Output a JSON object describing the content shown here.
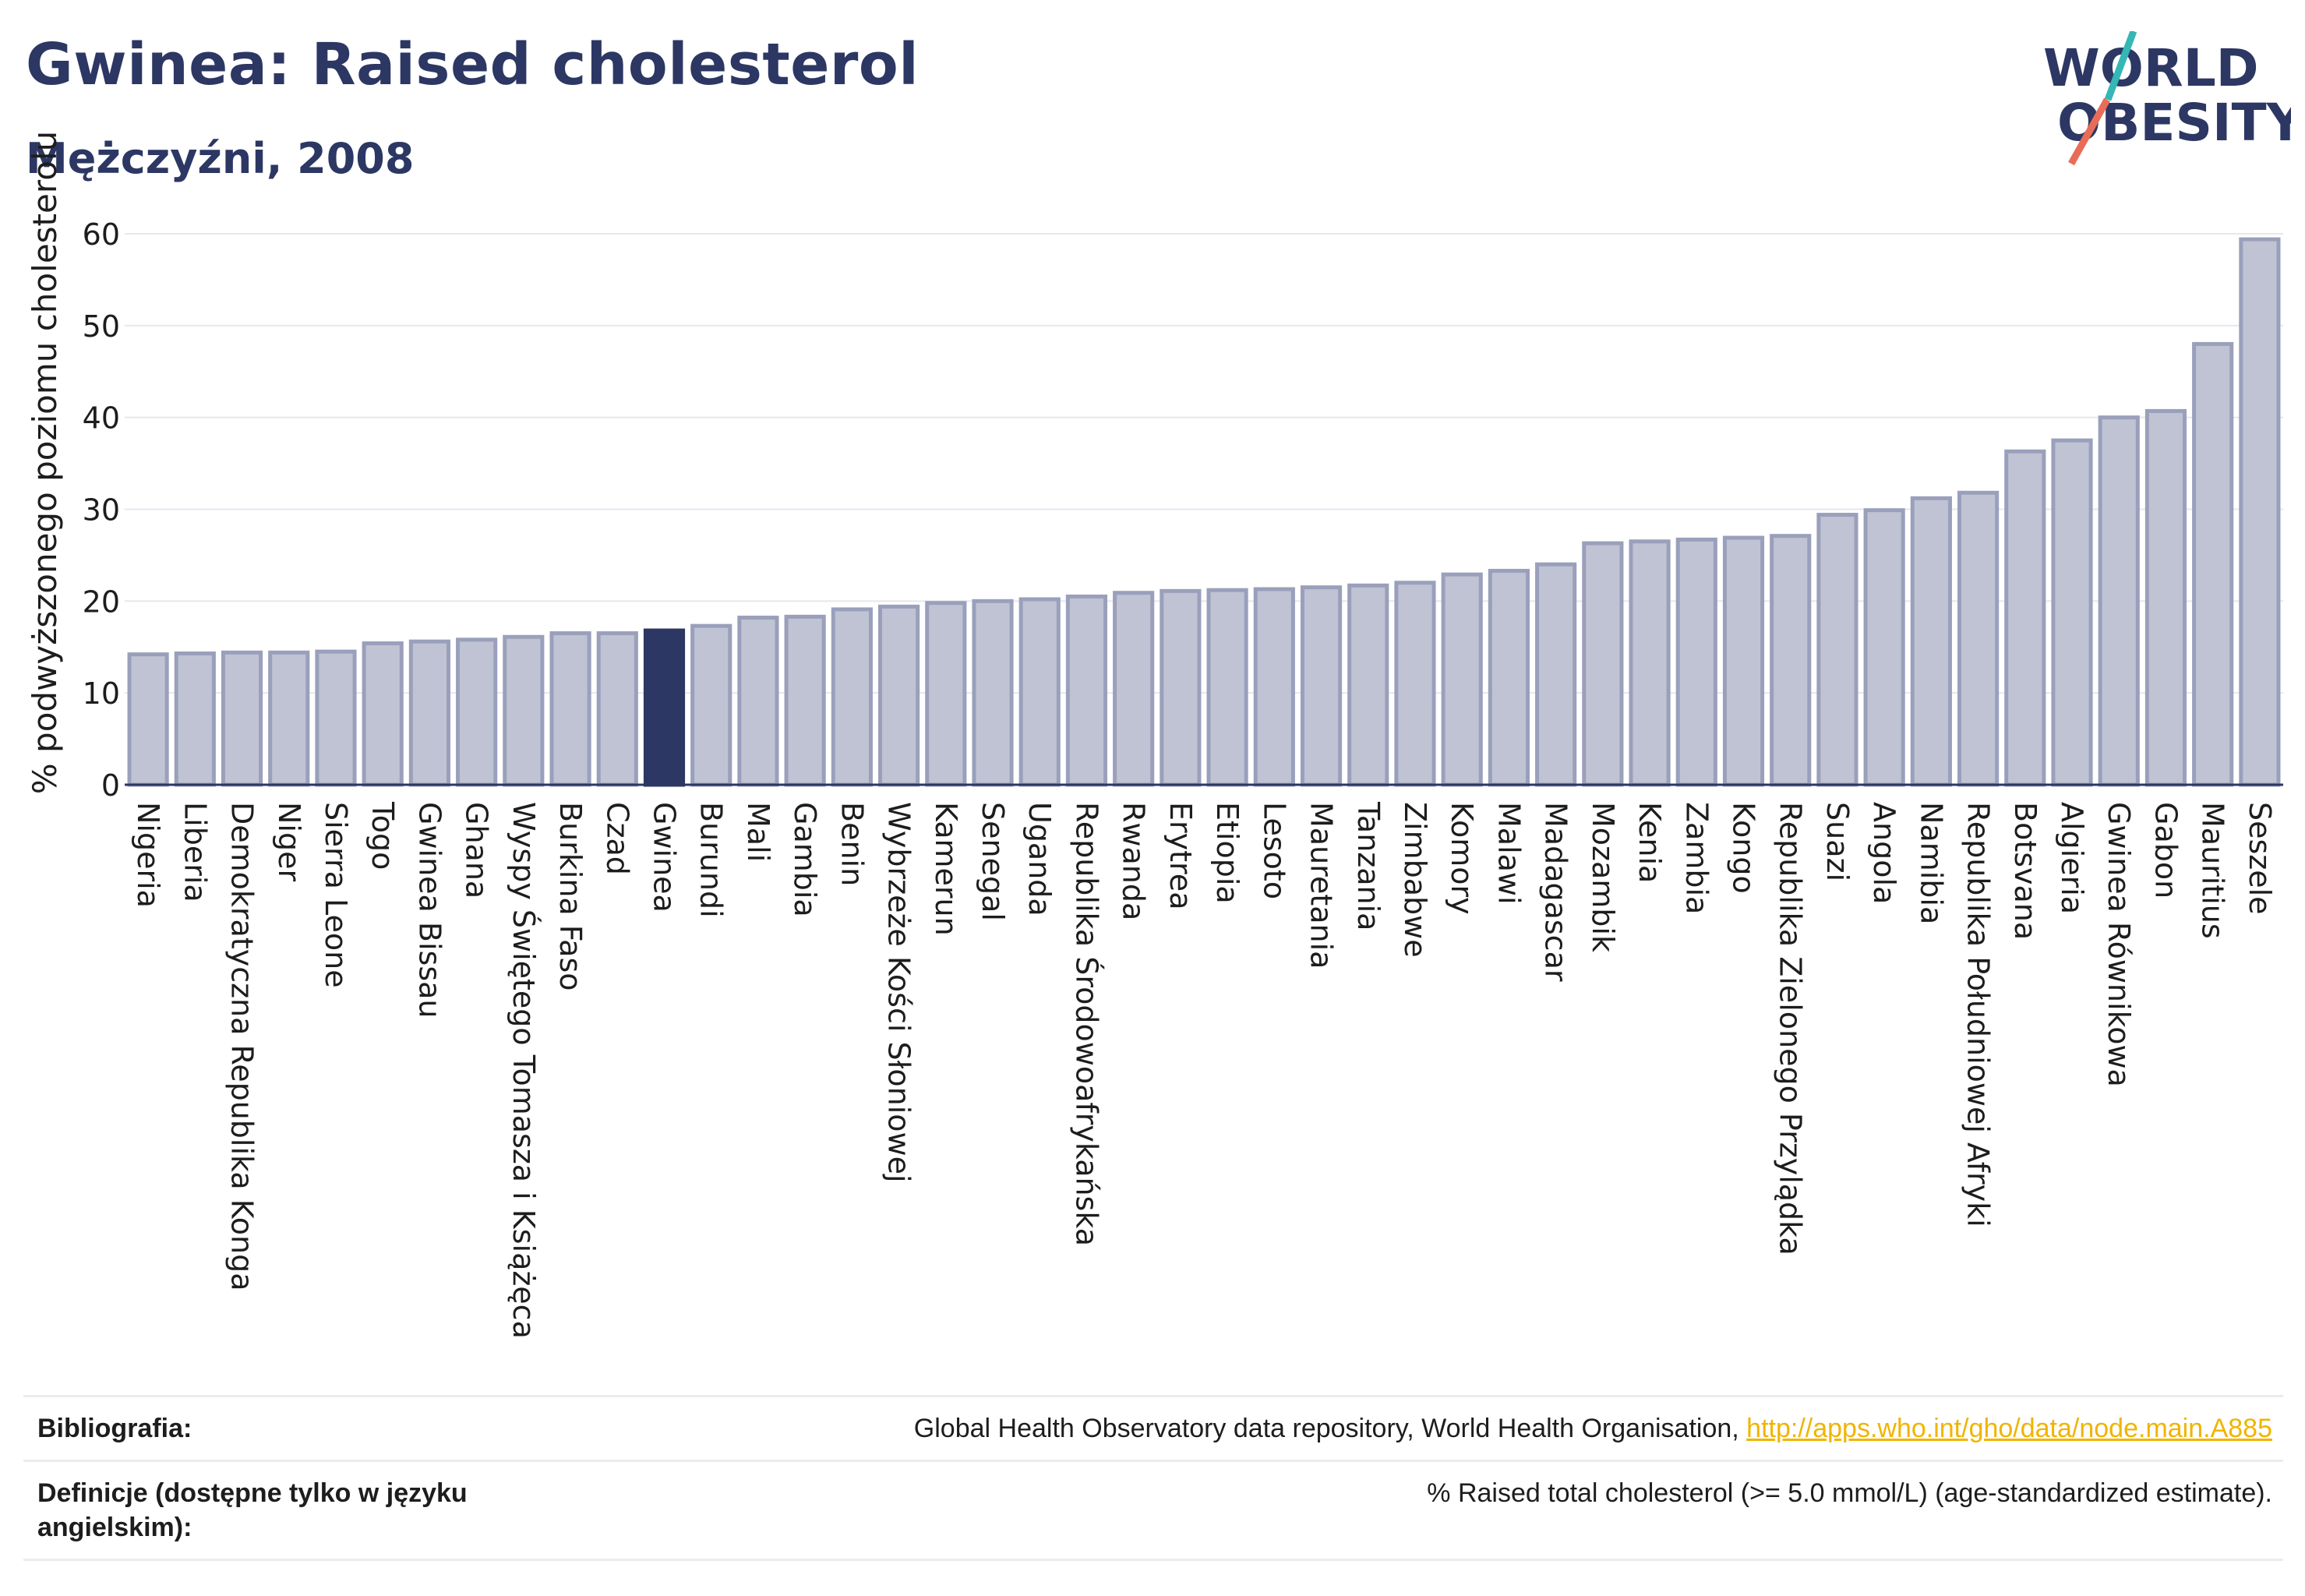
{
  "header": {
    "title": "Gwinea: Raised cholesterol",
    "subtitle": "Mężczyźni, 2008"
  },
  "logo": {
    "line1": "WORLD",
    "line2": "OBESITY"
  },
  "colors": {
    "bar": "#bfc3d3",
    "bar_stroke": "#9aa0bb",
    "highlight": "#2c3763",
    "axis_text": "#1d1d1d",
    "grid": "#e7e7ee",
    "link": "#f0b400",
    "logo_teal": "#35b7b5",
    "logo_coral": "#e96c58"
  },
  "chart_data": {
    "type": "bar",
    "ylabel": "% podwyższonego poziomu cholesterolu",
    "xlabel": "",
    "ylim": [
      0,
      60
    ],
    "yticks": [
      0,
      10,
      20,
      30,
      40,
      50,
      60
    ],
    "grid": true,
    "highlight_category": "Gwinea",
    "categories": [
      "Nigeria",
      "Liberia",
      "Demokratyczna Republika Konga",
      "Niger",
      "Sierra Leone",
      "Togo",
      "Gwinea Bissau",
      "Ghana",
      "Wyspy Świętego Tomasza i Książęca",
      "Burkina Faso",
      "Czad",
      "Gwinea",
      "Burundi",
      "Mali",
      "Gambia",
      "Benin",
      "Wybrzeże Kości Słoniowej",
      "Kamerun",
      "Senegal",
      "Uganda",
      "Republika Środowoafrykańska",
      "Rwanda",
      "Erytrea",
      "Etiopia",
      "Lesoto",
      "Mauretania",
      "Tanzania",
      "Zimbabwe",
      "Komory",
      "Malawi",
      "Madagascar",
      "Mozambik",
      "Kenia",
      "Zambia",
      "Kongo",
      "Republika Zielonego Przylądka",
      "Suazi",
      "Angola",
      "Namibia",
      "Republika Południowej Afryki",
      "Botsvana",
      "Algieria",
      "Gwinea Równikowa",
      "Gabon",
      "Mauritius",
      "Seszele"
    ],
    "values": [
      14.2,
      14.3,
      14.4,
      14.4,
      14.5,
      15.4,
      15.6,
      15.8,
      16.1,
      16.5,
      16.5,
      16.8,
      17.3,
      18.2,
      18.3,
      19.1,
      19.4,
      19.8,
      20.0,
      20.2,
      20.5,
      20.9,
      21.1,
      21.2,
      21.3,
      21.5,
      21.7,
      22.0,
      22.9,
      23.3,
      24.0,
      26.3,
      26.5,
      26.7,
      26.9,
      27.1,
      29.4,
      29.9,
      31.2,
      31.8,
      36.3,
      37.5,
      40.0,
      40.7,
      48.0,
      59.4
    ]
  },
  "footer": {
    "source_label": "Bibliografia:",
    "source_text": "Global Health Observatory data repository, World Health Organisation, ",
    "source_link": "http://apps.who.int/gho/data/node.main.A885",
    "definition_label": "Definicje (dostępne tylko w języku angielskim):",
    "definition_text": "% Raised total cholesterol (>= 5.0 mmol/L) (age-standardized estimate)."
  }
}
